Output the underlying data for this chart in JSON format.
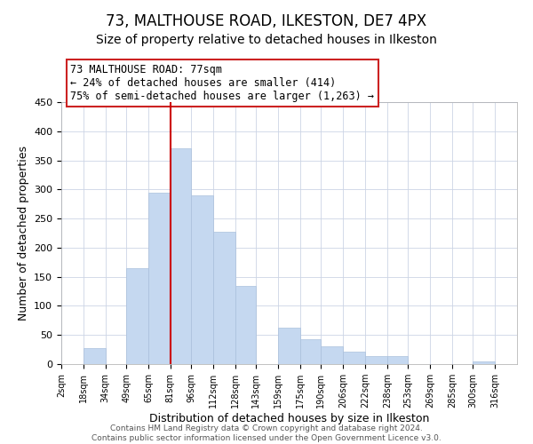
{
  "title": "73, MALTHOUSE ROAD, ILKESTON, DE7 4PX",
  "subtitle": "Size of property relative to detached houses in Ilkeston",
  "xlabel": "Distribution of detached houses by size in Ilkeston",
  "ylabel": "Number of detached properties",
  "bar_color": "#c5d8f0",
  "bar_edge_color": "#aac0dc",
  "bar_left_edges": [
    2,
    18,
    34,
    49,
    65,
    81,
    96,
    112,
    128,
    143,
    159,
    175,
    190,
    206,
    222,
    238,
    253,
    269,
    285,
    300,
    316
  ],
  "bar_widths": [
    16,
    16,
    15,
    16,
    16,
    15,
    16,
    16,
    15,
    16,
    16,
    15,
    16,
    16,
    16,
    15,
    16,
    16,
    15,
    16,
    16
  ],
  "bar_heights": [
    0,
    27,
    0,
    165,
    295,
    370,
    290,
    228,
    135,
    0,
    62,
    43,
    30,
    22,
    14,
    14,
    0,
    0,
    0,
    5,
    0
  ],
  "tick_labels": [
    "2sqm",
    "18sqm",
    "34sqm",
    "49sqm",
    "65sqm",
    "81sqm",
    "96sqm",
    "112sqm",
    "128sqm",
    "143sqm",
    "159sqm",
    "175sqm",
    "190sqm",
    "206sqm",
    "222sqm",
    "238sqm",
    "253sqm",
    "269sqm",
    "285sqm",
    "300sqm",
    "316sqm"
  ],
  "tick_positions": [
    2,
    18,
    34,
    49,
    65,
    81,
    96,
    112,
    128,
    143,
    159,
    175,
    190,
    206,
    222,
    238,
    253,
    269,
    285,
    300,
    316
  ],
  "ylim": [
    0,
    450
  ],
  "yticks": [
    0,
    50,
    100,
    150,
    200,
    250,
    300,
    350,
    400,
    450
  ],
  "xlim_left": 2,
  "xlim_right": 332,
  "vline_x": 81,
  "vline_color": "#cc0000",
  "annotation_title": "73 MALTHOUSE ROAD: 77sqm",
  "annotation_line1": "← 24% of detached houses are smaller (414)",
  "annotation_line2": "75% of semi-detached houses are larger (1,263) →",
  "footer_line1": "Contains HM Land Registry data © Crown copyright and database right 2024.",
  "footer_line2": "Contains public sector information licensed under the Open Government Licence v3.0.",
  "background_color": "#ffffff",
  "grid_color": "#ccd5e5",
  "title_fontsize": 12,
  "subtitle_fontsize": 10,
  "annotation_fontsize": 8.5,
  "tick_fontsize": 7,
  "ylabel_fontsize": 9,
  "xlabel_fontsize": 9,
  "footer_fontsize": 6.5
}
